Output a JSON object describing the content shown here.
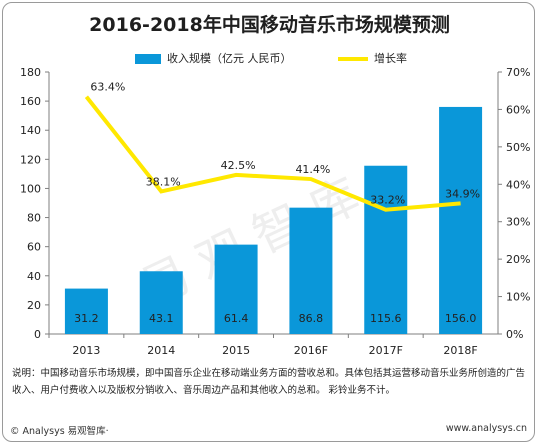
{
  "title": "2016-2018年中国移动音乐市场规模预测",
  "legend": {
    "bar_label": "收入规模（亿元 人民币）",
    "line_label": "增长率"
  },
  "colors": {
    "bar": "#0a97d9",
    "line": "#ffe800",
    "axis": "#7f7f7f"
  },
  "chart_data": {
    "type": "bar",
    "categories": [
      "2013",
      "2014",
      "2015",
      "2016F",
      "2017F",
      "2018F"
    ],
    "series": [
      {
        "name": "收入规模（亿元 人民币）",
        "type": "bar",
        "axis": "left",
        "values": [
          31.2,
          43.1,
          61.4,
          86.8,
          115.6,
          156.0
        ],
        "labels": [
          "31.2",
          "43.1",
          "61.4",
          "86.8",
          "115.6",
          "156.0"
        ]
      },
      {
        "name": "增长率",
        "type": "line",
        "axis": "right",
        "values": [
          63.4,
          38.1,
          42.5,
          41.4,
          33.2,
          34.9
        ],
        "labels": [
          "63.4%",
          "38.1%",
          "42.5%",
          "41.4%",
          "33.2%",
          "34.9%"
        ]
      }
    ],
    "ylim": [
      0,
      180
    ],
    "y2lim": [
      0,
      70
    ],
    "y_ticks": [
      "0",
      "20",
      "40",
      "60",
      "80",
      "100",
      "120",
      "140",
      "160",
      "180"
    ],
    "y2_ticks": [
      "0%",
      "10%",
      "20%",
      "30%",
      "40%",
      "50%",
      "60%",
      "70%"
    ],
    "grid": false,
    "legend_position": "top"
  },
  "note": "说明：中国移动音乐市场规模，即中国音乐企业在移动端业务方面的营收总和。具体包括其运营移动音乐业务所创造的广告收入、用户付费收入以及版权分销收入、音乐周边产品和其他收入的总和。 彩铃业务不计。",
  "footer": {
    "left": "© Analysys 易观智库·",
    "right": "www.analysys.cn"
  },
  "watermark": "易观智库"
}
